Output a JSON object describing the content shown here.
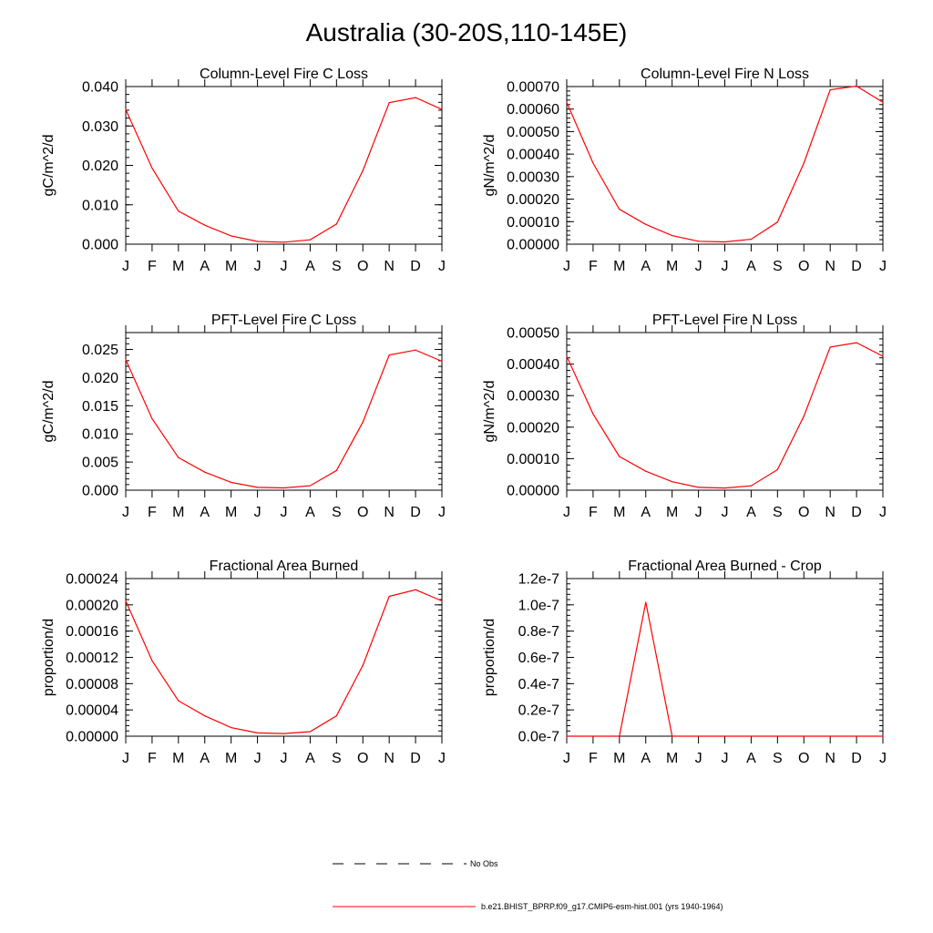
{
  "title": "Australia (30-20S,110-145E)",
  "months": [
    "J",
    "F",
    "M",
    "A",
    "M",
    "J",
    "J",
    "A",
    "S",
    "O",
    "N",
    "D",
    "J"
  ],
  "colors": {
    "model": "#ff0000",
    "obs": "#000000"
  },
  "legend": {
    "obs_label": "No Obs",
    "model_label": "b.e21.BHIST_BPRP.f09_g17.CMIP6-esm-hist.001 (yrs 1940-1964)"
  },
  "chart_data": [
    {
      "type": "line",
      "title": "Column-Level Fire C Loss",
      "ylabel": "gC/m^2/d",
      "ylim": [
        0,
        0.04
      ],
      "yticks": [
        0,
        0.01,
        0.02,
        0.03,
        0.04
      ],
      "yticklabels": [
        "0.000",
        "0.010",
        "0.020",
        "0.030",
        "0.040"
      ],
      "series": [
        {
          "values": [
            0.0342,
            0.0193,
            0.0084,
            0.0048,
            0.0021,
            0.0007,
            0.0005,
            0.0011,
            0.0051,
            0.0187,
            0.0359,
            0.0372,
            0.0342
          ]
        }
      ]
    },
    {
      "type": "line",
      "title": "Column-Level Fire N Loss",
      "ylabel": "gN/m^2/d",
      "ylim": [
        0,
        0.0007
      ],
      "yticks": [
        0,
        0.0001,
        0.0002,
        0.0003,
        0.0004,
        0.0005,
        0.0006,
        0.0007
      ],
      "yticklabels": [
        "0.00000",
        "0.00010",
        "0.00020",
        "0.00030",
        "0.00040",
        "0.00050",
        "0.00060",
        "0.00070"
      ],
      "series": [
        {
          "values": [
            0.00063,
            0.00036,
            0.000155,
            8.8e-05,
            3.8e-05,
            1.3e-05,
            1e-05,
            2.2e-05,
            9.8e-05,
            0.00036,
            0.000686,
            0.000702,
            0.00063
          ]
        }
      ]
    },
    {
      "type": "line",
      "title": "PFT-Level Fire C Loss",
      "ylabel": "gC/m^2/d",
      "ylim": [
        0,
        0.028
      ],
      "yticks": [
        0,
        0.005,
        0.01,
        0.015,
        0.02,
        0.025
      ],
      "yticklabels": [
        "0.000",
        "0.005",
        "0.010",
        "0.015",
        "0.020",
        "0.025"
      ],
      "series": [
        {
          "values": [
            0.0232,
            0.0127,
            0.0058,
            0.0032,
            0.0014,
            0.0005,
            0.0004,
            0.0008,
            0.0035,
            0.0121,
            0.024,
            0.0249,
            0.0229
          ]
        }
      ]
    },
    {
      "type": "line",
      "title": "PFT-Level Fire N Loss",
      "ylabel": "gN/m^2/d",
      "ylim": [
        0,
        0.0005
      ],
      "yticks": [
        0,
        0.0001,
        0.0002,
        0.0003,
        0.0004,
        0.0005
      ],
      "yticklabels": [
        "0.00000",
        "0.00010",
        "0.00020",
        "0.00030",
        "0.00040",
        "0.00050"
      ],
      "series": [
        {
          "values": [
            0.000425,
            0.000242,
            0.000107,
            6e-05,
            2.7e-05,
            9e-06,
            7e-06,
            1.4e-05,
            6.5e-05,
            0.000235,
            0.000454,
            0.000468,
            0.000425
          ]
        }
      ]
    },
    {
      "type": "line",
      "title": "Fractional Area Burned",
      "ylabel": "proportion/d",
      "ylim": [
        0,
        0.00024
      ],
      "yticks": [
        0,
        4e-05,
        8e-05,
        0.00012,
        0.00016,
        0.0002,
        0.00024
      ],
      "yticklabels": [
        "0.00000",
        "0.00004",
        "0.00008",
        "0.00012",
        "0.00016",
        "0.00020",
        "0.00024"
      ],
      "series": [
        {
          "values": [
            0.000206,
            0.000115,
            5.4e-05,
            3.1e-05,
            1.3e-05,
            5e-06,
            4e-06,
            7e-06,
            3.1e-05,
            0.000108,
            0.000213,
            0.000223,
            0.000206
          ]
        }
      ]
    },
    {
      "type": "line",
      "title": "Fractional Area Burned - Crop",
      "ylabel": "proportion/d",
      "ylim": [
        0,
        1.2e-07
      ],
      "yticks": [
        0,
        2e-08,
        4e-08,
        6e-08,
        8e-08,
        1e-07,
        1.2e-07
      ],
      "yticklabels": [
        "0.0e-7",
        "0.2e-7",
        "0.4e-7",
        "0.6e-7",
        "0.8e-7",
        "1.0e-7",
        "1.2e-7"
      ],
      "series": [
        {
          "values": [
            0,
            0,
            0,
            1.02e-07,
            0,
            0,
            0,
            0,
            0,
            0,
            0,
            0,
            0
          ]
        }
      ]
    }
  ]
}
